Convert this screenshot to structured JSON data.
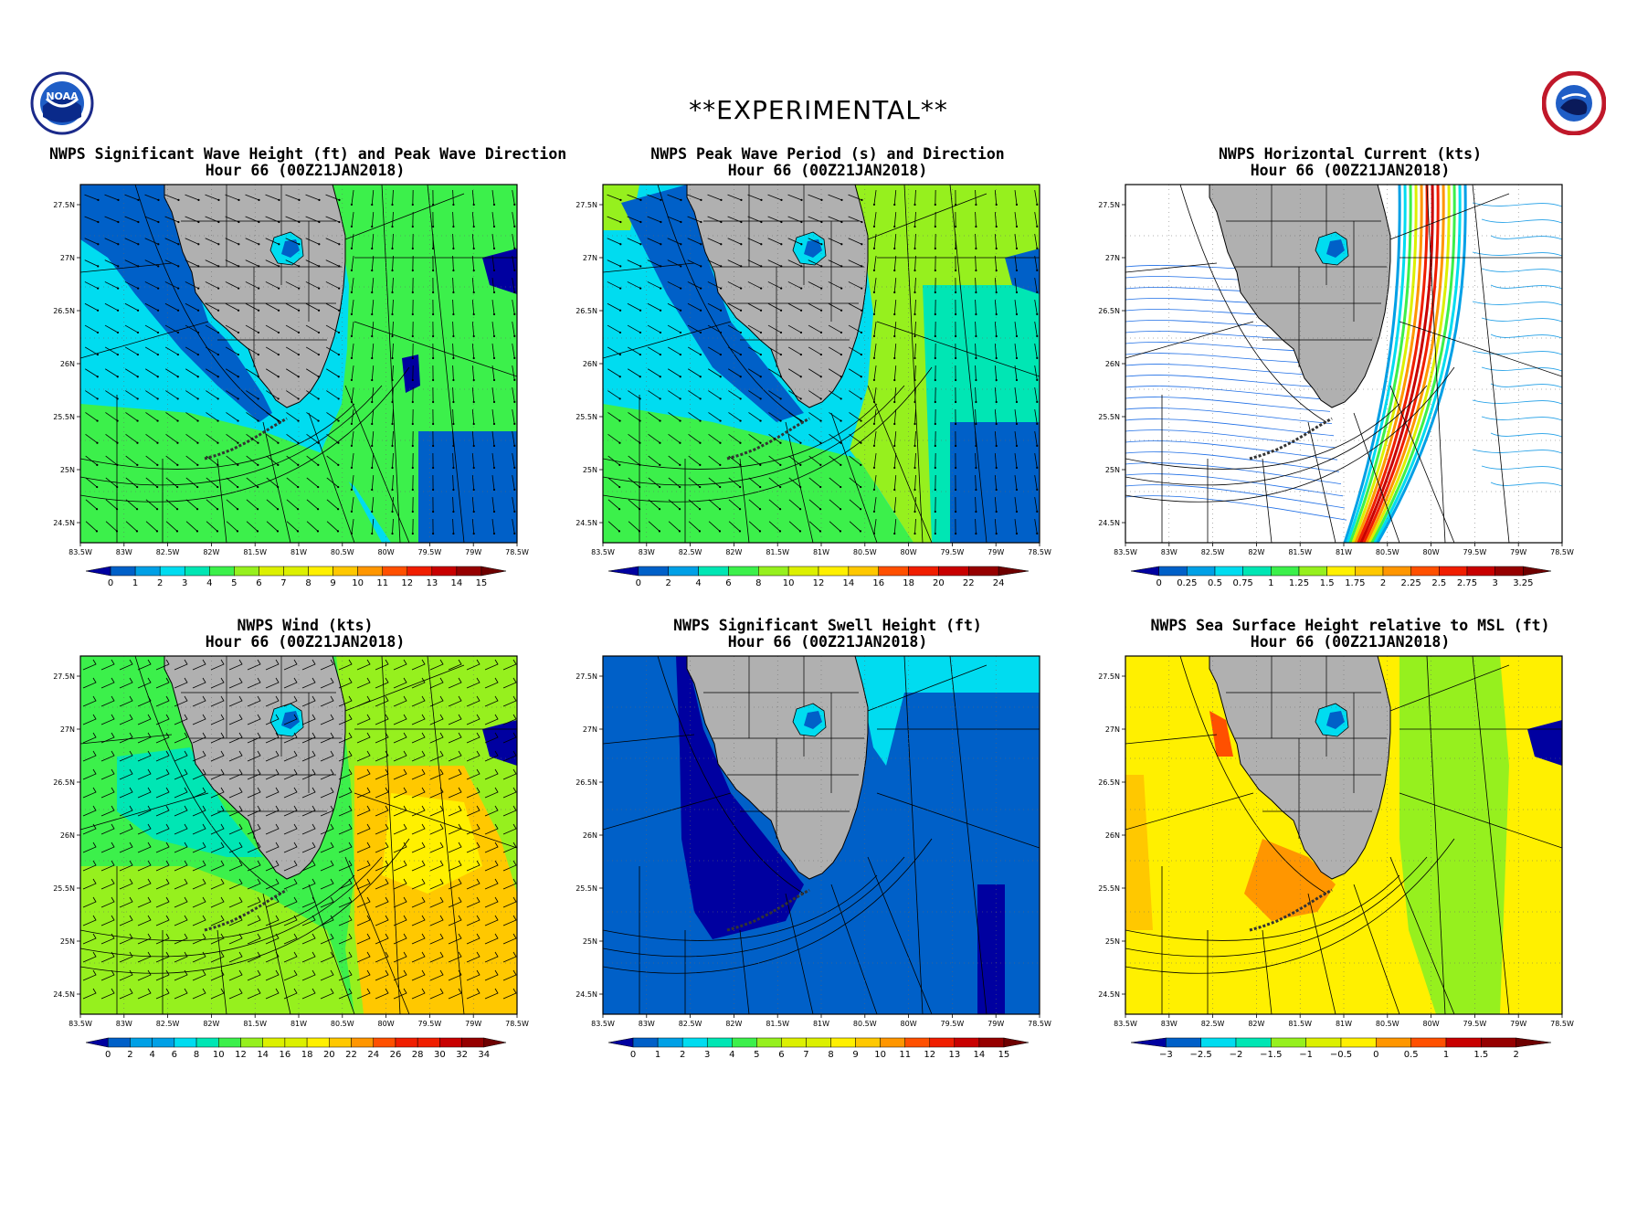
{
  "banner": "**EXPERIMENTAL**",
  "logos": {
    "left": "NOAA",
    "right": "NATIONAL WEATHER SERVICE"
  },
  "axes": {
    "lon_labels": [
      "83.5W",
      "83W",
      "82.5W",
      "82W",
      "81.5W",
      "81W",
      "80.5W",
      "80W",
      "79.5W",
      "79W",
      "78.5W"
    ],
    "lat_labels": [
      "27.5N",
      "27N",
      "26.5N",
      "26N",
      "25.5N",
      "25N",
      "24.5N"
    ]
  },
  "panels": [
    {
      "id": "wave-height",
      "title": "NWPS Significant Wave Height (ft) and Peak Wave Direction",
      "subtitle": "Hour 66 (00Z21JAN2018)",
      "colorbar": {
        "labels": [
          "0",
          "1",
          "2",
          "3",
          "4",
          "5",
          "6",
          "7",
          "8",
          "9",
          "10",
          "11",
          "12",
          "13",
          "14",
          "15"
        ]
      },
      "field": "sea",
      "overlay": "arrows"
    },
    {
      "id": "wave-period",
      "title": "NWPS Peak Wave Period (s) and Direction",
      "subtitle": "Hour 66 (00Z21JAN2018)",
      "colorbar": {
        "labels": [
          "0",
          "2",
          "4",
          "6",
          "8",
          "10",
          "12",
          "14",
          "16",
          "18",
          "20",
          "22",
          "24"
        ]
      },
      "field": "period",
      "overlay": "arrows"
    },
    {
      "id": "current",
      "title": "NWPS Horizontal Current (kts)",
      "subtitle": "Hour 66 (00Z21JAN2018)",
      "colorbar": {
        "labels": [
          "0",
          "0.25",
          "0.5",
          "0.75",
          "1",
          "1.25",
          "1.5",
          "1.75",
          "2",
          "2.25",
          "2.5",
          "2.75",
          "3",
          "3.25"
        ]
      },
      "field": "current",
      "overlay": "streamlines"
    },
    {
      "id": "wind",
      "title": "NWPS Wind (kts)",
      "subtitle": "Hour 66 (00Z21JAN2018)",
      "colorbar": {
        "labels": [
          "0",
          "2",
          "4",
          "6",
          "8",
          "10",
          "12",
          "14",
          "16",
          "18",
          "20",
          "22",
          "24",
          "26",
          "28",
          "30",
          "32",
          "34"
        ]
      },
      "field": "wind",
      "overlay": "barbs"
    },
    {
      "id": "swell",
      "title": "NWPS Significant Swell Height (ft)",
      "subtitle": "Hour 66 (00Z21JAN2018)",
      "colorbar": {
        "labels": [
          "0",
          "1",
          "2",
          "3",
          "4",
          "5",
          "6",
          "7",
          "8",
          "9",
          "10",
          "11",
          "12",
          "13",
          "14",
          "15"
        ]
      },
      "field": "swell",
      "overlay": "none"
    },
    {
      "id": "sea-surface",
      "title": "NWPS Sea Surface Height relative to MSL (ft)",
      "subtitle": "Hour 66 (00Z21JAN2018)",
      "colorbar": {
        "labels": [
          "−3",
          "−2.5",
          "−2",
          "−1.5",
          "−1",
          "−0.5",
          "0",
          "0.5",
          "1",
          "1.5",
          "2"
        ]
      },
      "field": "ssh",
      "overlay": "none"
    }
  ],
  "colors": {
    "land": "#b0b0b0",
    "colorbar": [
      "#0000a0",
      "#0060c8",
      "#00a0e6",
      "#00dcf0",
      "#00e6b4",
      "#3cf04b",
      "#96f01e",
      "#dcf000",
      "#fff000",
      "#ffc800",
      "#ff9600",
      "#ff5000",
      "#f01e00",
      "#c80000",
      "#960000",
      "#6e0000"
    ]
  }
}
